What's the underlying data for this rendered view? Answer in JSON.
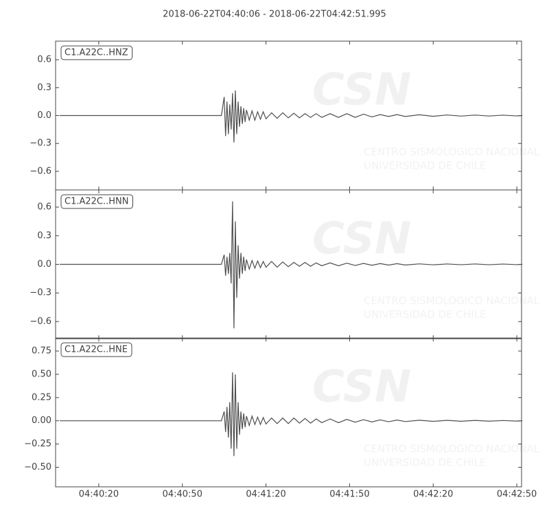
{
  "title": "2018-06-22T04:40:06  -  2018-06-22T04:42:51.995",
  "watermark": {
    "logo": "CSN",
    "line1": "CENTRO SISMOLOGICO NACIONAL",
    "line2": "UNIVERSIDAD DE CHILE"
  },
  "chart_data": [
    {
      "type": "line",
      "label": "C1.A22C..HNZ",
      "color": "#4d4d4d",
      "x": [
        "04:40:06",
        "04:41:04",
        "04:41:05",
        "04:41:05.5",
        "04:41:06",
        "04:41:06.5",
        "04:41:07",
        "04:41:07.5",
        "04:41:08",
        "04:41:08.5",
        "04:41:09",
        "04:41:09.5",
        "04:41:10",
        "04:41:10.5",
        "04:41:11",
        "04:41:11.5",
        "04:41:12",
        "04:41:12.5",
        "04:41:13",
        "04:41:14",
        "04:41:15",
        "04:41:16",
        "04:41:17",
        "04:41:18",
        "04:41:19",
        "04:41:20",
        "04:41:22",
        "04:41:24",
        "04:41:26",
        "04:41:28",
        "04:41:30",
        "04:41:32",
        "04:41:34",
        "04:41:36",
        "04:41:38",
        "04:41:40",
        "04:41:43",
        "04:41:46",
        "04:41:49",
        "04:41:52",
        "04:41:55",
        "04:41:58",
        "04:42:01",
        "04:42:04",
        "04:42:07",
        "04:42:10",
        "04:42:15",
        "04:42:20",
        "04:42:25",
        "04:42:30",
        "04:42:35",
        "04:42:40",
        "04:42:45",
        "04:42:50",
        "04:42:51.995"
      ],
      "values": [
        0,
        0,
        0.2,
        -0.22,
        0.15,
        -0.2,
        0.12,
        -0.15,
        0.24,
        -0.29,
        0.27,
        -0.2,
        0.15,
        -0.12,
        0.1,
        -0.09,
        0.08,
        -0.07,
        0.06,
        -0.05,
        0.05,
        -0.05,
        0.04,
        -0.04,
        0.04,
        -0.035,
        0.03,
        -0.03,
        0.03,
        -0.025,
        0.025,
        -0.025,
        0.02,
        -0.02,
        0.02,
        -0.02,
        0.02,
        -0.02,
        0.02,
        -0.02,
        0.015,
        -0.015,
        0.01,
        -0.01,
        0.01,
        -0.01,
        0.008,
        -0.008,
        0.006,
        -0.006,
        0.005,
        -0.005,
        0.004,
        -0.004,
        0
      ],
      "xlim": [
        "04:40:04.5",
        "04:42:51.7"
      ],
      "xticks": [
        "04:40:20",
        "04:40:50",
        "04:41:20",
        "04:41:50",
        "04:42:20",
        "04:42:50"
      ],
      "ylim": [
        -0.8,
        0.8
      ],
      "yticks": [
        {
          "value": -0.6,
          "label": "−0.6"
        },
        {
          "value": -0.3,
          "label": "−0.3"
        },
        {
          "value": 0,
          "label": "0.0"
        },
        0.3,
        0.6
      ]
    },
    {
      "type": "line",
      "label": "C1.A22C..HNN",
      "color": "#4d4d4d",
      "x": [
        "04:40:06",
        "04:41:04",
        "04:41:05",
        "04:41:05.5",
        "04:41:06",
        "04:41:06.5",
        "04:41:07",
        "04:41:07.5",
        "04:41:08",
        "04:41:08.5",
        "04:41:09",
        "04:41:09.5",
        "04:41:10",
        "04:41:10.5",
        "04:41:11",
        "04:41:11.5",
        "04:41:12",
        "04:41:12.5",
        "04:41:13",
        "04:41:14",
        "04:41:15",
        "04:41:16",
        "04:41:17",
        "04:41:18",
        "04:41:19",
        "04:41:20",
        "04:41:22",
        "04:41:24",
        "04:41:26",
        "04:41:28",
        "04:41:30",
        "04:41:32",
        "04:41:34",
        "04:41:36",
        "04:41:38",
        "04:41:40",
        "04:41:43",
        "04:41:46",
        "04:41:49",
        "04:41:52",
        "04:41:55",
        "04:41:58",
        "04:42:01",
        "04:42:04",
        "04:42:07",
        "04:42:10",
        "04:42:15",
        "04:42:20",
        "04:42:25",
        "04:42:30",
        "04:42:35",
        "04:42:40",
        "04:42:45",
        "04:42:50",
        "04:42:51.995"
      ],
      "values": [
        0,
        0,
        0.1,
        -0.12,
        0.08,
        -0.1,
        0.12,
        -0.2,
        0.66,
        -0.67,
        0.45,
        -0.35,
        0.2,
        -0.15,
        0.12,
        -0.1,
        0.08,
        -0.07,
        0.05,
        -0.05,
        0.04,
        -0.04,
        0.035,
        -0.035,
        0.03,
        -0.03,
        0.03,
        -0.03,
        0.025,
        -0.025,
        0.02,
        -0.02,
        0.02,
        -0.02,
        0.015,
        -0.015,
        0.015,
        -0.015,
        0.012,
        -0.012,
        0.01,
        -0.01,
        0.008,
        -0.008,
        0.007,
        -0.007,
        0.005,
        -0.005,
        0.004,
        -0.004,
        0.004,
        -0.004,
        0.003,
        -0.003,
        0
      ],
      "xlim": [
        "04:40:04.5",
        "04:42:51.7"
      ],
      "xticks": [
        "04:40:20",
        "04:40:50",
        "04:41:20",
        "04:41:50",
        "04:42:20",
        "04:42:50"
      ],
      "ylim": [
        -0.78,
        0.78
      ],
      "yticks": [
        {
          "value": -0.6,
          "label": "−0.6"
        },
        {
          "value": -0.3,
          "label": "−0.3"
        },
        {
          "value": 0,
          "label": "0.0"
        },
        0.3,
        0.6
      ]
    },
    {
      "type": "line",
      "label": "C1.A22C..HNE",
      "color": "#4d4d4d",
      "x": [
        "04:40:06",
        "04:41:04",
        "04:41:05",
        "04:41:05.5",
        "04:41:06",
        "04:41:06.5",
        "04:41:07",
        "04:41:07.5",
        "04:41:08",
        "04:41:08.5",
        "04:41:09",
        "04:41:09.5",
        "04:41:10",
        "04:41:10.5",
        "04:41:11",
        "04:41:11.5",
        "04:41:12",
        "04:41:12.5",
        "04:41:13",
        "04:41:14",
        "04:41:15",
        "04:41:16",
        "04:41:17",
        "04:41:18",
        "04:41:19",
        "04:41:20",
        "04:41:22",
        "04:41:24",
        "04:41:26",
        "04:41:28",
        "04:41:30",
        "04:41:32",
        "04:41:34",
        "04:41:36",
        "04:41:38",
        "04:41:40",
        "04:41:43",
        "04:41:46",
        "04:41:49",
        "04:41:52",
        "04:41:55",
        "04:41:58",
        "04:42:01",
        "04:42:04",
        "04:42:07",
        "04:42:10",
        "04:42:15",
        "04:42:20",
        "04:42:25",
        "04:42:30",
        "04:42:35",
        "04:42:40",
        "04:42:45",
        "04:42:50",
        "04:42:51.995"
      ],
      "values": [
        0,
        0,
        0.1,
        -0.12,
        0.15,
        -0.18,
        0.2,
        -0.3,
        0.52,
        -0.38,
        0.5,
        -0.3,
        0.2,
        -0.15,
        0.1,
        -0.09,
        0.08,
        -0.07,
        0.05,
        -0.05,
        0.05,
        -0.04,
        0.04,
        -0.04,
        0.035,
        -0.035,
        0.03,
        -0.03,
        0.03,
        -0.03,
        0.03,
        -0.025,
        0.025,
        -0.025,
        0.02,
        -0.02,
        0.02,
        -0.02,
        0.015,
        -0.015,
        0.012,
        -0.012,
        0.01,
        -0.01,
        0.008,
        -0.008,
        0.006,
        -0.006,
        0.005,
        -0.005,
        0.004,
        -0.004,
        0.003,
        -0.003,
        0
      ],
      "xlim": [
        "04:40:04.5",
        "04:42:51.7"
      ],
      "xticks": [
        "04:40:20",
        "04:40:50",
        "04:41:20",
        "04:41:50",
        "04:42:20",
        "04:42:50"
      ],
      "ylim": [
        -0.71,
        0.89
      ],
      "yticks": [
        {
          "value": -0.5,
          "label": "−0.50"
        },
        {
          "value": -0.25,
          "label": "−0.25"
        },
        {
          "value": 0,
          "label": "0.00"
        },
        {
          "value": 0.25,
          "label": "0.25"
        },
        {
          "value": 0.5,
          "label": "0.50"
        },
        0.75
      ]
    }
  ]
}
